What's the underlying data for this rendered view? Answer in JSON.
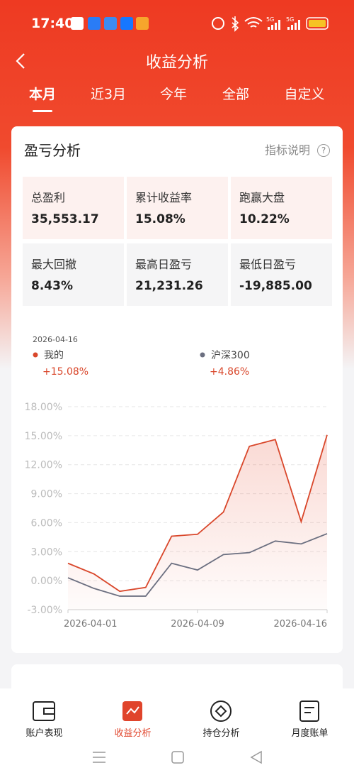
{
  "status_bar": {
    "time": "17:40",
    "network": [
      "5G",
      "5G"
    ]
  },
  "header": {
    "title": "收益分析"
  },
  "tabs": [
    "本月",
    "近3月",
    "今年",
    "全部",
    "自定义"
  ],
  "card": {
    "title": "盈亏分析",
    "help": "指标说明",
    "stats": [
      {
        "label": "总盈利",
        "value": "35,553.17"
      },
      {
        "label": "累计收益率",
        "value": "15.08%"
      },
      {
        "label": "跑赢大盘",
        "value": "10.22%"
      },
      {
        "label": "最大回撤",
        "value": "8.43%"
      },
      {
        "label": "最高日盈亏",
        "value": "21,231.26"
      },
      {
        "label": "最低日盈亏",
        "value": "-19,885.00"
      }
    ]
  },
  "chart_data": {
    "type": "line",
    "date": "2026-04-16",
    "categories": [
      "2026-04-01",
      null,
      null,
      null,
      null,
      "2026-04-09",
      null,
      null,
      null,
      null,
      "2026-04-16"
    ],
    "series": [
      {
        "name": "我的",
        "color": "#d9472b",
        "latest_label": "+15.08%",
        "values": [
          1.8,
          0.7,
          -1.1,
          -0.7,
          4.6,
          4.8,
          7.1,
          13.9,
          14.6,
          6.1,
          15.08
        ]
      },
      {
        "name": "沪深300",
        "color": "#6b6f80",
        "latest_label": "+4.86%",
        "values": [
          0.3,
          -0.8,
          -1.6,
          -1.6,
          1.8,
          1.1,
          2.7,
          2.9,
          4.1,
          3.8,
          4.86
        ]
      }
    ],
    "ylim": [
      -3,
      18
    ],
    "yticks": [
      {
        "value": -3,
        "label": "-3.00%"
      },
      {
        "value": 0,
        "label": "0.00%"
      },
      {
        "value": 3,
        "label": "3.00%"
      },
      {
        "value": 6,
        "label": "6.00%"
      },
      {
        "value": 9,
        "label": "9.00%"
      },
      {
        "value": 12,
        "label": "12.00%"
      },
      {
        "value": 15,
        "label": "15.00%"
      },
      {
        "value": 18,
        "label": "18.00%"
      }
    ],
    "grid": true
  },
  "nav": [
    "账户表现",
    "收益分析",
    "持仓分析",
    "月度账单"
  ]
}
